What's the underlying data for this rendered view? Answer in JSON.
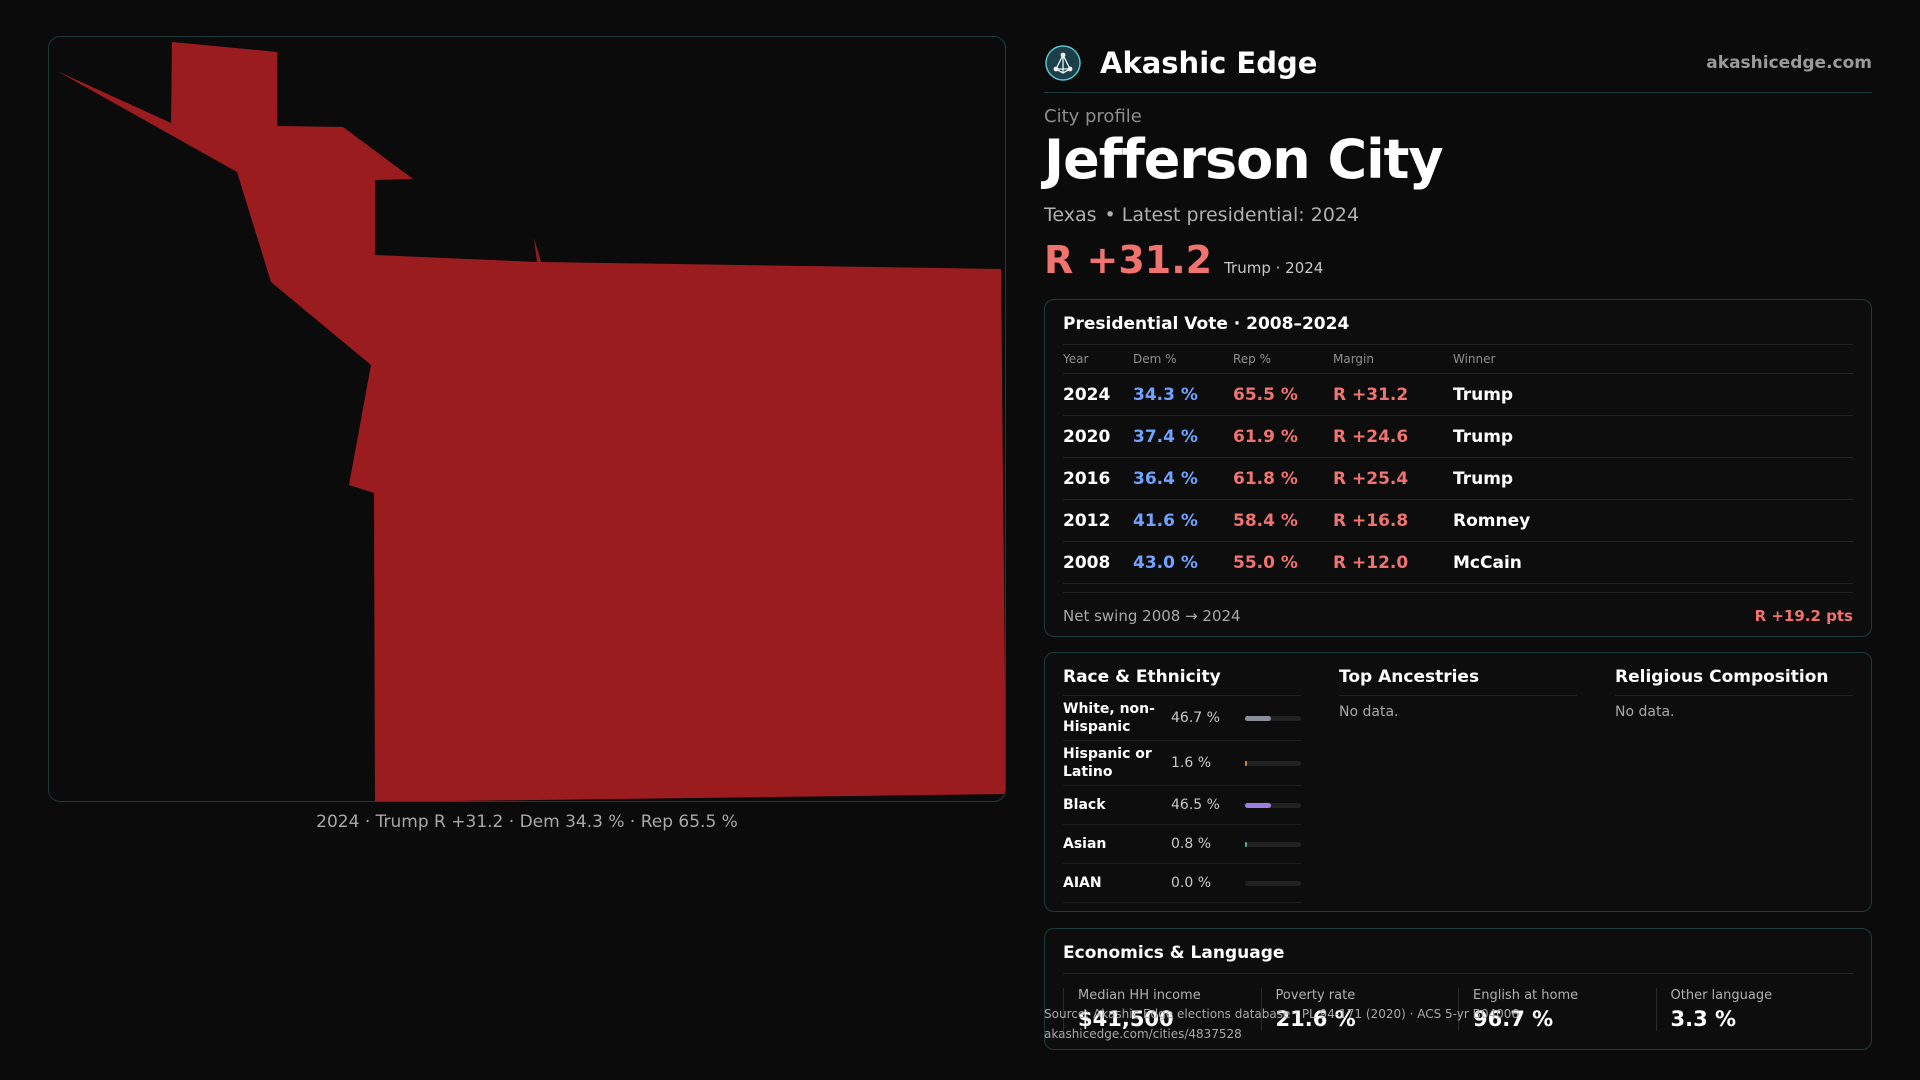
{
  "map": {
    "caption": "2024 · Trump R +31.2 · Dem 34.3 % · Rep 65.5 %",
    "fill_color": "#9b1c1f"
  },
  "header": {
    "brand": "Akashic Edge",
    "site": "akashicedge.com",
    "logo_icon": "network-circle-icon"
  },
  "profile": {
    "eyebrow": "City profile",
    "city": "Jefferson City",
    "state": "Texas",
    "latest": "• Latest presidential: 2024",
    "margin": "R +31.2",
    "margin_note": "Trump · 2024"
  },
  "vote_card": {
    "title": "Presidential Vote · 2008–2024",
    "columns": [
      "Year",
      "Dem %",
      "Rep %",
      "Margin",
      "Winner"
    ],
    "rows": [
      {
        "year": "2024",
        "dem": "34.3 %",
        "rep": "65.5 %",
        "margin": "R +31.2",
        "winner": "Trump"
      },
      {
        "year": "2020",
        "dem": "37.4 %",
        "rep": "61.9 %",
        "margin": "R +24.6",
        "winner": "Trump"
      },
      {
        "year": "2016",
        "dem": "36.4 %",
        "rep": "61.8 %",
        "margin": "R +25.4",
        "winner": "Trump"
      },
      {
        "year": "2012",
        "dem": "41.6 %",
        "rep": "58.4 %",
        "margin": "R +16.8",
        "winner": "Romney"
      },
      {
        "year": "2008",
        "dem": "43.0 %",
        "rep": "55.0 %",
        "margin": "R +12.0",
        "winner": "McCain"
      }
    ],
    "swing_label": "Net swing 2008 → 2024",
    "swing_value": "R +19.2 pts"
  },
  "demographics": {
    "race_title": "Race & Ethnicity",
    "race": [
      {
        "label": "White, non-Hispanic",
        "pct": "46.7 %",
        "value": 46.7,
        "color": "#8a8f9a"
      },
      {
        "label": "Hispanic or Latino",
        "pct": "1.6 %",
        "value": 1.6,
        "color": "#e0893a"
      },
      {
        "label": "Black",
        "pct": "46.5 %",
        "value": 46.5,
        "color": "#9a7ee0"
      },
      {
        "label": "Asian",
        "pct": "0.8 %",
        "value": 0.8,
        "color": "#4fb0a0"
      },
      {
        "label": "AIAN",
        "pct": "0.0 %",
        "value": 0.0,
        "color": "#888888"
      }
    ],
    "ancestry_title": "Top Ancestries",
    "ancestry_empty": "No data.",
    "religion_title": "Religious Composition",
    "religion_empty": "No data."
  },
  "economics": {
    "title": "Economics & Language",
    "items": [
      {
        "label": "Median HH income",
        "value": "$41,500"
      },
      {
        "label": "Poverty rate",
        "value": "21.6 %"
      },
      {
        "label": "English at home",
        "value": "96.7 %"
      },
      {
        "label": "Other language",
        "value": "3.3 %"
      }
    ]
  },
  "footer": {
    "source": "Source: Akashic Edge elections database · PL 94-171 (2020) · ACS 5-yr B04006",
    "url": "akashicedge.com/cities/4837528"
  }
}
